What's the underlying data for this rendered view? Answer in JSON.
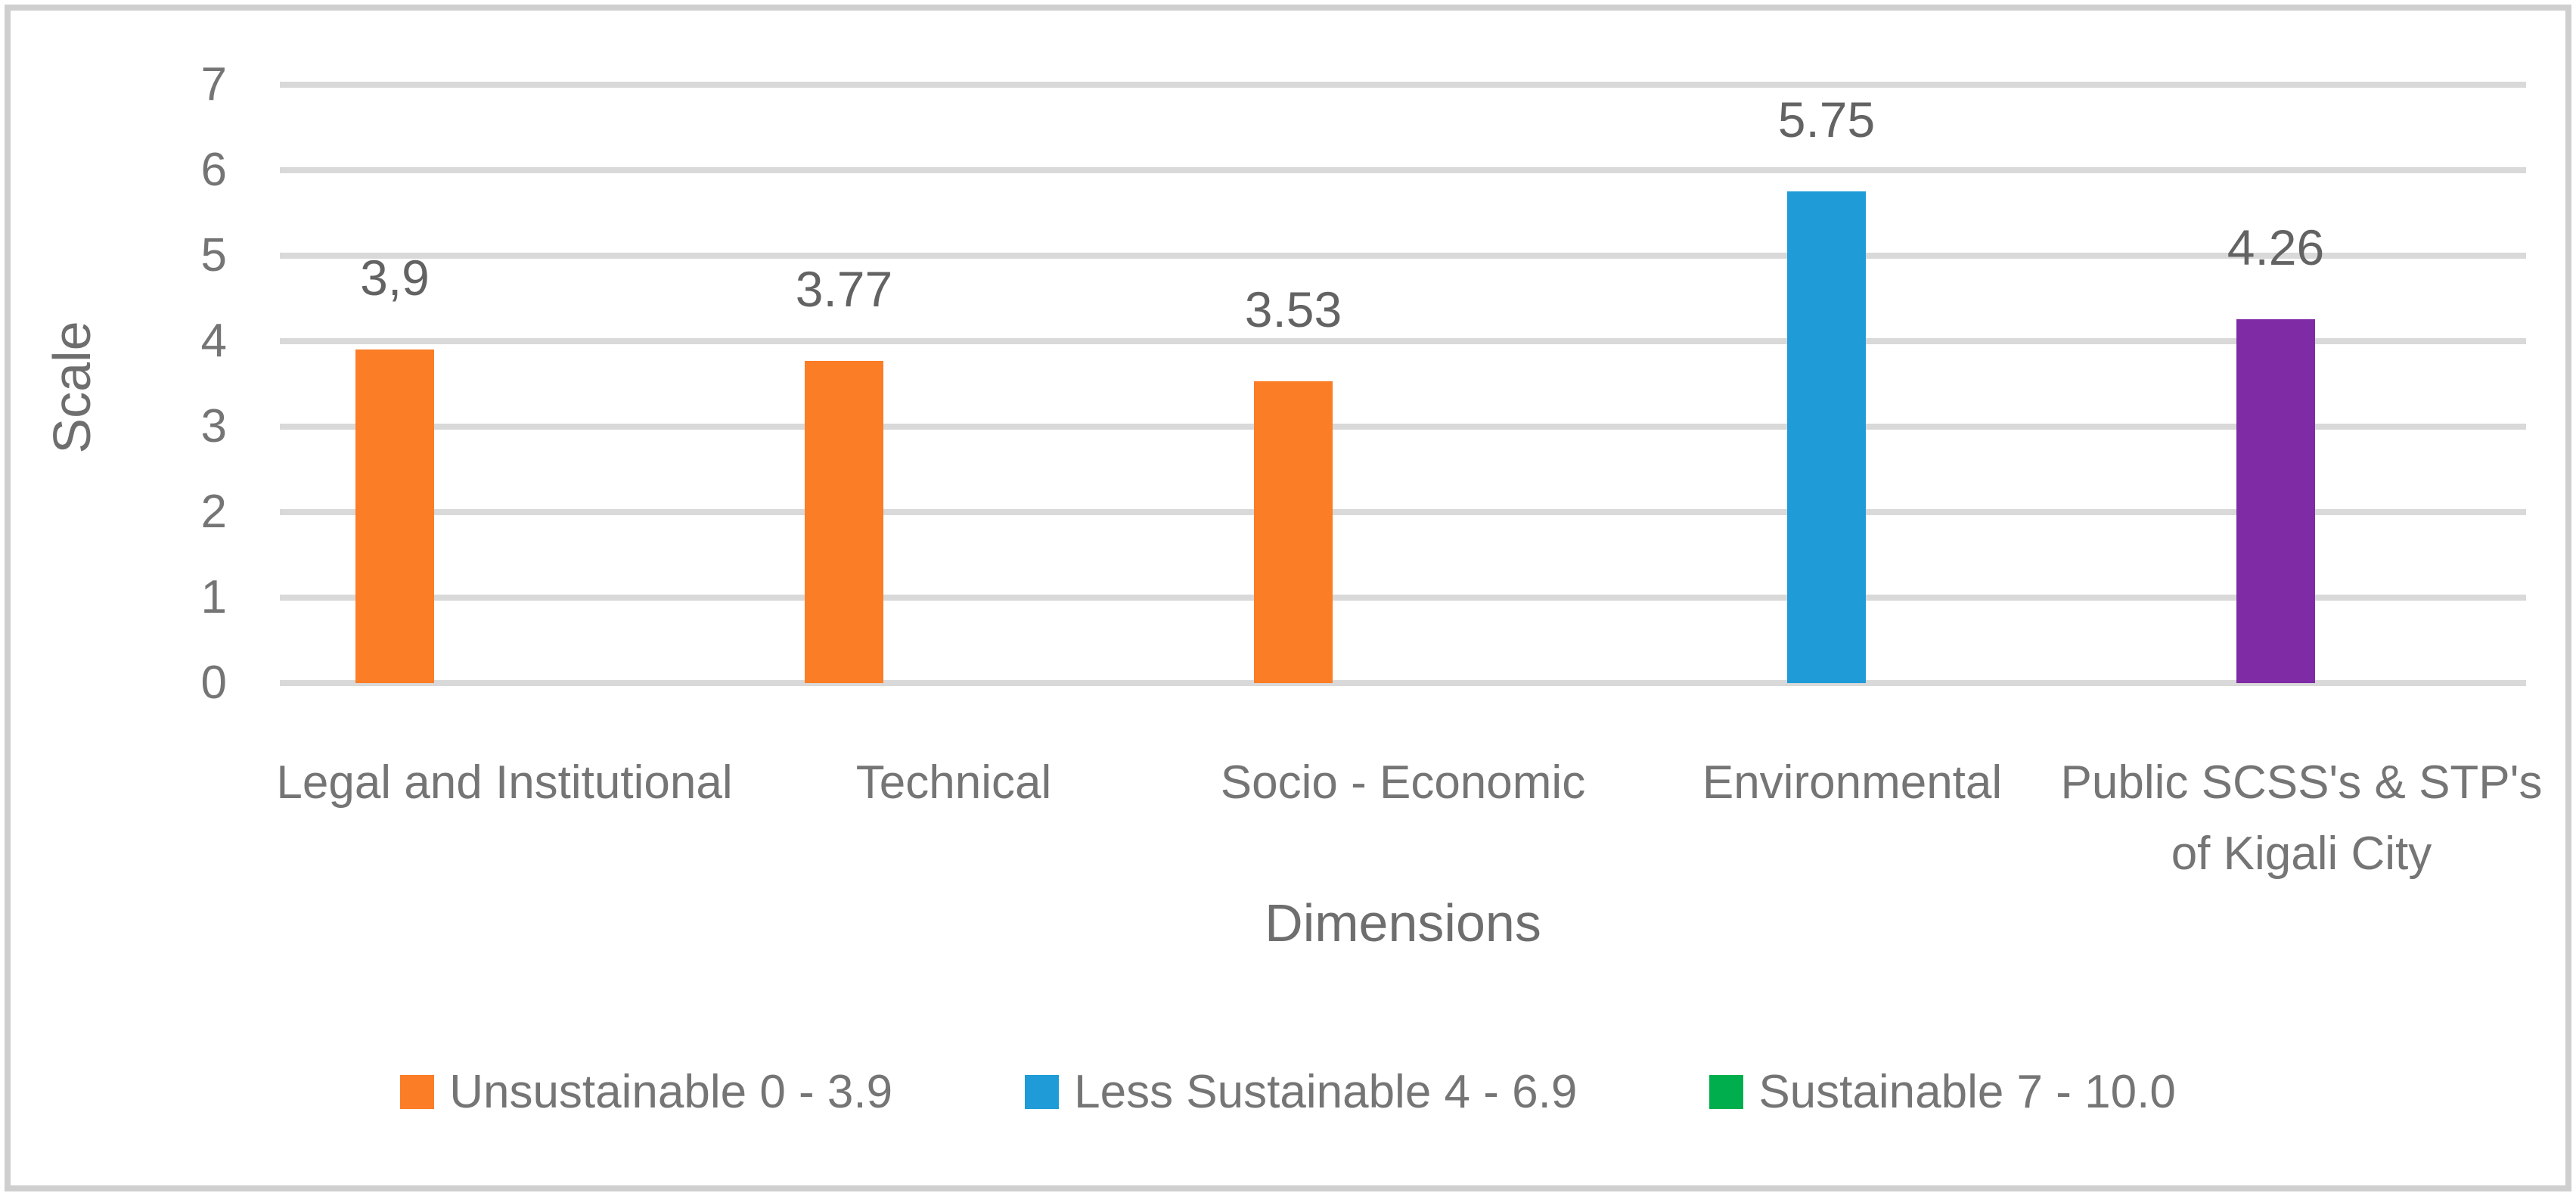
{
  "chart_data": {
    "type": "bar",
    "title": "",
    "xlabel": "Dimensions",
    "ylabel": "Scale",
    "ylim": [
      0,
      7
    ],
    "yticks": [
      0,
      1,
      2,
      3,
      4,
      5,
      6,
      7
    ],
    "grid": "horizontal",
    "legend_position": "bottom",
    "categories": [
      "Legal and Institutional",
      "Technical",
      "Socio - Economic",
      "Environmental",
      "Public SCSS's & STP's of Kigali City"
    ],
    "values": [
      3.9,
      3.77,
      3.53,
      5.75,
      4.26
    ],
    "value_labels": [
      "3,9",
      "3.77",
      "3.53",
      "5.75",
      "4.26"
    ],
    "bar_colors": [
      "#fb7d26",
      "#fb7d26",
      "#fb7d26",
      "#1f9cd8",
      "#7f2ba5"
    ],
    "bar_series_index": [
      0,
      0,
      0,
      1,
      1
    ],
    "legend": [
      {
        "label": "Unsustainable 0 - 3.9",
        "color": "#fb7d26"
      },
      {
        "label": "Less Sustainable 4 - 6.9",
        "color": "#1f9cd8"
      },
      {
        "label": "Sustainable 7 - 10.0",
        "color": "#00ae4e"
      }
    ],
    "colors": {
      "gridline": "#d9d9d9",
      "text": "#757575",
      "frame_border": "#cfcfcf",
      "background": "#ffffff"
    }
  }
}
